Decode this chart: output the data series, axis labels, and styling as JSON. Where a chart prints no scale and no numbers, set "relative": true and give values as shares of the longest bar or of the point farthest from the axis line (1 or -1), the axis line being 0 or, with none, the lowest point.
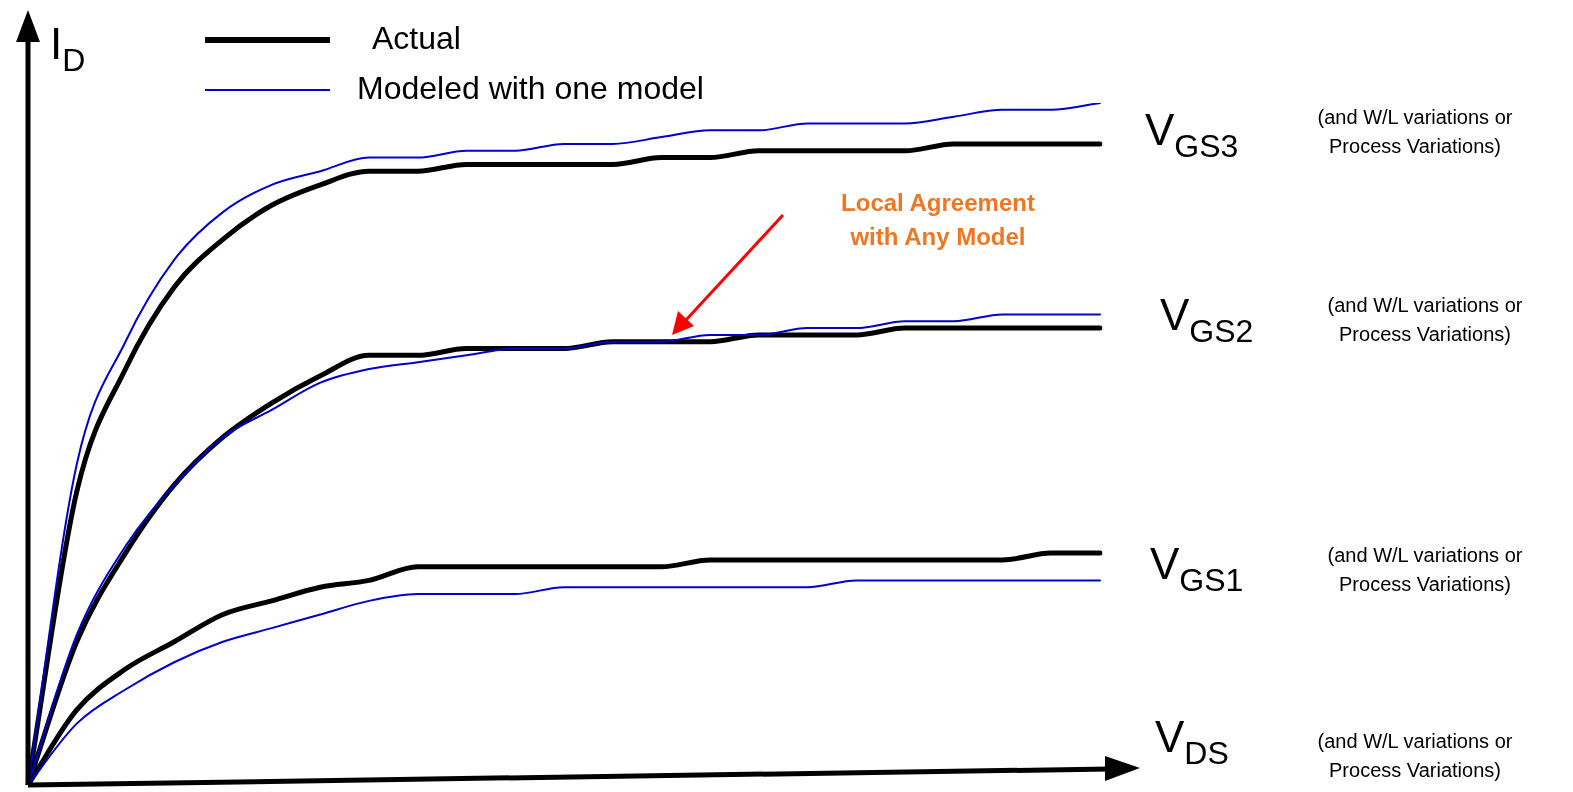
{
  "chart_data": {
    "type": "line",
    "relative": true,
    "xlabel": "V$_{DS}$",
    "ylabel": "I$_{D}$",
    "tick_labels": false,
    "legend": "top",
    "marker": "none",
    "line_style": "solid",
    "categories": [
      null,
      null,
      null,
      null,
      null,
      null,
      null,
      null,
      null,
      null,
      null,
      null,
      null,
      null,
      null,
      null,
      null,
      null,
      null,
      null,
      null,
      null,
      null
    ],
    "series": [
      {
        "name": "Actual",
        "color": "#000000",
        "values": [
          0,
          0.43,
          0.61,
          0.73,
          0.8,
          0.85,
          0.88,
          0.9,
          0.9,
          0.91,
          0.91,
          0.91,
          0.91,
          0.92,
          0.92,
          0.93,
          0.93,
          0.93,
          0.93,
          0.94,
          0.94,
          0.94,
          0.94
        ]
      },
      {
        "name": "Modeled with one model",
        "color": "#0000cc",
        "values": [
          0,
          0.47,
          0.65,
          0.77,
          0.84,
          0.88,
          0.9,
          0.92,
          0.92,
          0.93,
          0.93,
          0.94,
          0.94,
          0.95,
          0.96,
          0.96,
          0.97,
          0.97,
          0.97,
          0.98,
          0.99,
          0.99,
          1
        ]
      },
      {
        "color": "#000000",
        "values": [
          0,
          0.21,
          0.34,
          0.44,
          0.51,
          0.56,
          0.6,
          0.63,
          0.63,
          0.64,
          0.64,
          0.64,
          0.65,
          0.65,
          0.65,
          0.66,
          0.66,
          0.66,
          0.67,
          0.67,
          0.67,
          0.67,
          0.67
        ]
      },
      {
        "color": "#0000cc",
        "values": [
          0,
          0.22,
          0.35,
          0.44,
          0.51,
          0.55,
          0.59,
          0.61,
          0.62,
          0.63,
          0.64,
          0.64,
          0.65,
          0.65,
          0.66,
          0.66,
          0.67,
          0.67,
          0.68,
          0.68,
          0.69,
          0.69,
          0.69
        ]
      },
      {
        "color": "#000000",
        "values": [
          0,
          0.11,
          0.17,
          0.21,
          0.25,
          0.27,
          0.29,
          0.3,
          0.32,
          0.32,
          0.32,
          0.32,
          0.32,
          0.32,
          0.33,
          0.33,
          0.33,
          0.33,
          0.33,
          0.33,
          0.33,
          0.34,
          0.34
        ]
      },
      {
        "color": "#0000cc",
        "values": [
          0,
          0.09,
          0.14,
          0.18,
          0.21,
          0.23,
          0.25,
          0.27,
          0.28,
          0.28,
          0.28,
          0.29,
          0.29,
          0.29,
          0.29,
          0.29,
          0.29,
          0.3,
          0.3,
          0.3,
          0.3,
          0.3,
          0.3
        ]
      }
    ],
    "annotations": [
      "V$_{GS3}$",
      "(and W/L variations or Process Variations)",
      "V$_{GS2}$",
      "(and W/L variations or Process Variations)",
      "V$_{GS1}$",
      "(and W/L variations or Process Variations)",
      "(and W/L variations or Process Variations)",
      "Local Agreement with Any Model"
    ]
  }
}
